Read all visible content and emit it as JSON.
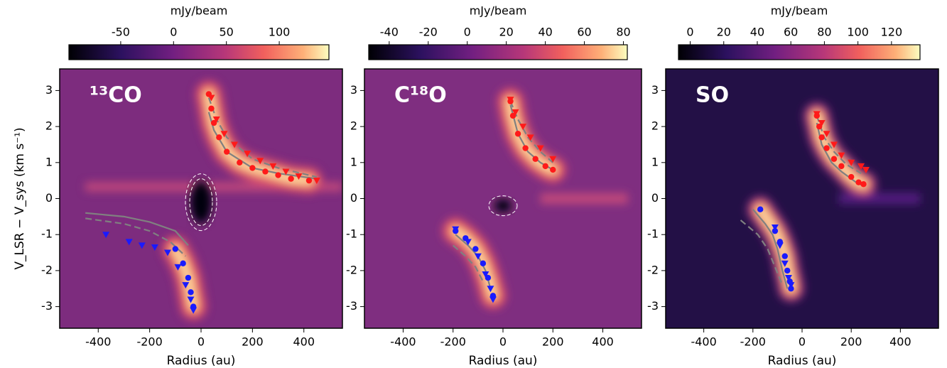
{
  "chart_data": [
    {
      "type": "scatter",
      "title": "¹³CO",
      "x_label": "Radius (au)",
      "y_label": "V_LSR − V_sys (km s⁻¹)",
      "colorbar_label": "mJy/beam",
      "clim": [
        -99,
        147
      ],
      "cticks": [
        -50,
        0,
        50,
        100
      ],
      "xlim": [
        -550,
        550
      ],
      "ylim": [
        -3.6,
        3.6
      ],
      "xticks": [
        -400,
        -200,
        0,
        200,
        400
      ],
      "yticks": [
        -3,
        -2,
        -1,
        0,
        1,
        2,
        3
      ],
      "series": [
        {
          "type": "line",
          "style": "solid",
          "color": "#808080",
          "x": [
            30,
            50,
            100,
            200,
            300,
            450
          ],
          "values": [
            2.4,
            1.9,
            1.3,
            0.85,
            0.7,
            0.55
          ]
        },
        {
          "type": "line",
          "style": "dashed",
          "color": "#808080",
          "x": [
            30,
            60,
            100,
            200,
            300,
            450
          ],
          "values": [
            2.8,
            2.2,
            1.7,
            1.1,
            0.85,
            0.6
          ]
        },
        {
          "type": "line",
          "style": "solid",
          "color": "#808080",
          "x": [
            -450,
            -300,
            -200,
            -100,
            -50
          ],
          "values": [
            -0.4,
            -0.5,
            -0.65,
            -0.9,
            -1.3
          ]
        },
        {
          "type": "line",
          "style": "dashed",
          "color": "#808080",
          "x": [
            -450,
            -300,
            -200,
            -120,
            -60
          ],
          "values": [
            -0.55,
            -0.7,
            -0.9,
            -1.2,
            -1.6
          ]
        },
        {
          "type": "scatter",
          "marker": "circle",
          "color": "#ff1a1a",
          "x": [
            30,
            40,
            50,
            70,
            100,
            150,
            200,
            250,
            300,
            350,
            420
          ],
          "values": [
            2.9,
            2.5,
            2.1,
            1.7,
            1.3,
            1.0,
            0.85,
            0.75,
            0.65,
            0.55,
            0.5
          ]
        },
        {
          "type": "scatter",
          "marker": "triangle",
          "color": "#ff1a1a",
          "x": [
            40,
            60,
            90,
            130,
            180,
            230,
            280,
            330,
            380,
            450
          ],
          "values": [
            2.8,
            2.2,
            1.8,
            1.5,
            1.25,
            1.05,
            0.9,
            0.75,
            0.62,
            0.5
          ]
        },
        {
          "type": "scatter",
          "marker": "circle",
          "color": "#1a1aff",
          "x": [
            -100,
            -70,
            -50,
            -40,
            -30
          ],
          "values": [
            -1.4,
            -1.8,
            -2.2,
            -2.6,
            -3.0
          ]
        },
        {
          "type": "scatter",
          "marker": "triangle",
          "color": "#1a1aff",
          "x": [
            -370,
            -280,
            -230,
            -180,
            -130,
            -90,
            -60,
            -40,
            -30
          ],
          "values": [
            -1.0,
            -1.2,
            -1.3,
            -1.35,
            -1.5,
            -1.9,
            -2.4,
            -2.8,
            -3.1
          ]
        }
      ]
    },
    {
      "type": "scatter",
      "title": "C¹⁸O",
      "x_label": "Radius (au)",
      "colorbar_label": "mJy/beam",
      "clim": [
        -50.5,
        82
      ],
      "cticks": [
        -40,
        -20,
        0,
        20,
        40,
        60,
        80
      ],
      "xlim": [
        -555,
        555
      ],
      "ylim": [
        -3.6,
        3.6
      ],
      "xticks": [
        -400,
        -200,
        0,
        200,
        400
      ],
      "yticks": [
        -3,
        -2,
        -1,
        0,
        1,
        2,
        3
      ],
      "series": [
        {
          "type": "line",
          "style": "solid",
          "color": "#808080",
          "x": [
            30,
            60,
            100,
            150,
            200
          ],
          "values": [
            2.6,
            1.8,
            1.3,
            1.0,
            0.8
          ]
        },
        {
          "type": "line",
          "style": "dashed",
          "color": "#808080",
          "x": [
            30,
            60,
            100,
            150,
            200
          ],
          "values": [
            2.7,
            2.2,
            1.7,
            1.3,
            1.0
          ]
        },
        {
          "type": "line",
          "style": "solid",
          "color": "#808080",
          "x": [
            -190,
            -140,
            -100,
            -70,
            -50
          ],
          "values": [
            -1.0,
            -1.3,
            -1.6,
            -2.0,
            -2.5
          ]
        },
        {
          "type": "line",
          "style": "dashed",
          "color": "#808080",
          "x": [
            -200,
            -150,
            -110,
            -80
          ],
          "values": [
            -1.3,
            -1.6,
            -1.9,
            -2.3
          ]
        },
        {
          "type": "scatter",
          "marker": "circle",
          "color": "#ff1a1a",
          "x": [
            30,
            40,
            60,
            90,
            130,
            170,
            200
          ],
          "values": [
            2.7,
            2.3,
            1.8,
            1.4,
            1.1,
            0.9,
            0.8
          ]
        },
        {
          "type": "scatter",
          "marker": "triangle",
          "color": "#ff1a1a",
          "x": [
            30,
            50,
            80,
            110,
            150,
            200
          ],
          "values": [
            2.75,
            2.4,
            2.0,
            1.7,
            1.4,
            1.1
          ]
        },
        {
          "type": "scatter",
          "marker": "circle",
          "color": "#1a1aff",
          "x": [
            -190,
            -150,
            -110,
            -80,
            -60,
            -40
          ],
          "values": [
            -0.9,
            -1.1,
            -1.4,
            -1.8,
            -2.2,
            -2.7
          ]
        },
        {
          "type": "scatter",
          "marker": "triangle",
          "color": "#1a1aff",
          "x": [
            -190,
            -140,
            -100,
            -70,
            -50,
            -40
          ],
          "values": [
            -0.85,
            -1.2,
            -1.6,
            -2.1,
            -2.5,
            -2.8
          ]
        }
      ]
    },
    {
      "type": "scatter",
      "title": "SO",
      "x_label": "Radius (au)",
      "colorbar_label": "mJy/beam",
      "clim": [
        -7,
        137
      ],
      "cticks": [
        0,
        20,
        40,
        60,
        80,
        100,
        120
      ],
      "xlim": [
        -555,
        555
      ],
      "ylim": [
        -3.6,
        3.6
      ],
      "xticks": [
        -400,
        -200,
        0,
        200,
        400
      ],
      "yticks": [
        -3,
        -2,
        -1,
        0,
        1,
        2,
        3
      ],
      "series": [
        {
          "type": "line",
          "style": "solid",
          "color": "#808080",
          "x": [
            60,
            80,
            120,
            160,
            220,
            250
          ],
          "values": [
            2.1,
            1.5,
            1.0,
            0.75,
            0.45,
            0.35
          ]
        },
        {
          "type": "line",
          "style": "dashed",
          "color": "#808080",
          "x": [
            60,
            90,
            130,
            180,
            240
          ],
          "values": [
            2.3,
            1.7,
            1.3,
            0.95,
            0.7
          ]
        },
        {
          "type": "line",
          "style": "solid",
          "color": "#808080",
          "x": [
            -200,
            -150,
            -120,
            -100,
            -80,
            -60
          ],
          "values": [
            -0.3,
            -0.7,
            -1.0,
            -1.4,
            -2.0,
            -2.5
          ]
        },
        {
          "type": "line",
          "style": "dashed",
          "color": "#808080",
          "x": [
            -250,
            -180,
            -140,
            -110,
            -80
          ],
          "values": [
            -0.6,
            -1.0,
            -1.4,
            -1.9,
            -2.4
          ]
        },
        {
          "type": "scatter",
          "marker": "circle",
          "color": "#ff1a1a",
          "x": [
            60,
            70,
            80,
            100,
            130,
            160,
            200,
            230,
            250
          ],
          "values": [
            2.3,
            2.0,
            1.7,
            1.4,
            1.1,
            0.9,
            0.6,
            0.45,
            0.4
          ]
        },
        {
          "type": "scatter",
          "marker": "triangle",
          "color": "#ff1a1a",
          "x": [
            60,
            80,
            100,
            130,
            160,
            200,
            240,
            260
          ],
          "values": [
            2.35,
            2.1,
            1.8,
            1.5,
            1.2,
            1.0,
            0.9,
            0.8
          ]
        },
        {
          "type": "scatter",
          "marker": "circle",
          "color": "#1a1aff",
          "x": [
            -170,
            -110,
            -90,
            -70,
            -60,
            -50,
            -45
          ],
          "values": [
            -0.3,
            -0.9,
            -1.2,
            -1.6,
            -2.0,
            -2.3,
            -2.5
          ]
        },
        {
          "type": "scatter",
          "marker": "triangle",
          "color": "#1a1aff",
          "x": [
            -110,
            -90,
            -70,
            -55,
            -45
          ],
          "values": [
            -0.8,
            -1.3,
            -1.8,
            -2.2,
            -2.4
          ]
        }
      ]
    }
  ]
}
